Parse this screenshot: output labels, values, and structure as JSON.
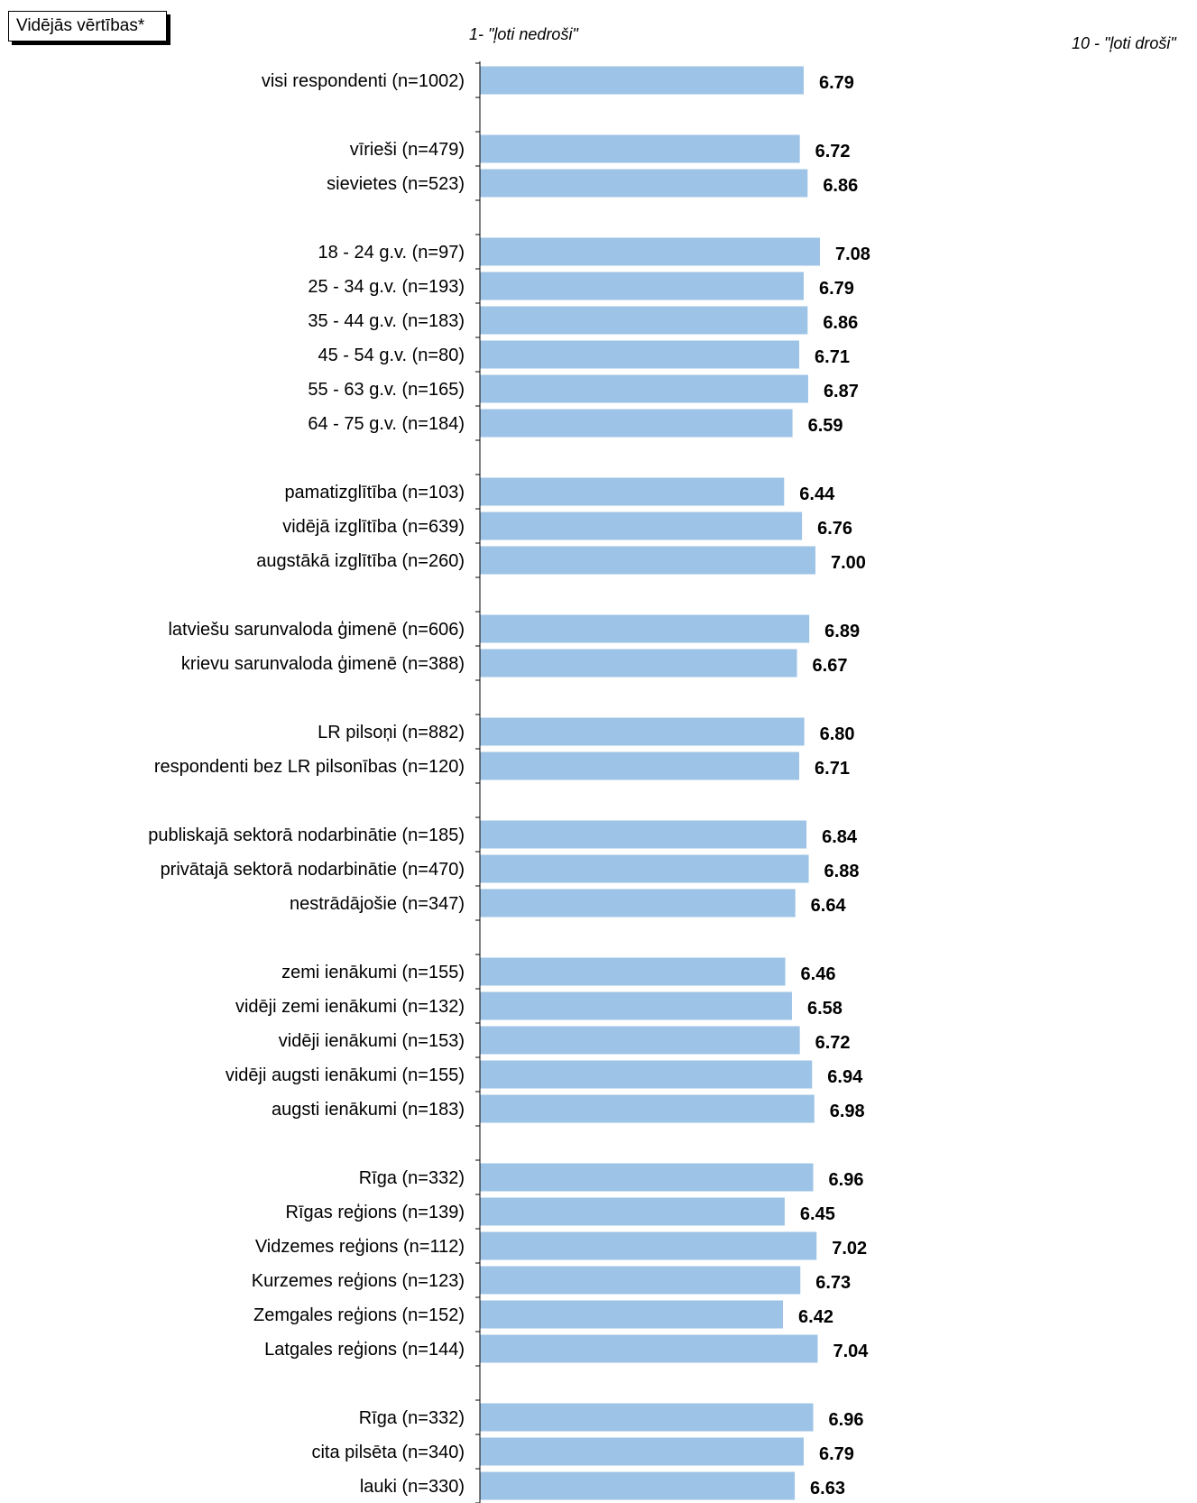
{
  "legend_box": {
    "text": "Vidējās vērtības*"
  },
  "scale_notes": {
    "low": "1- \"ļoti nedroši\"",
    "high": "10 - \"ļoti droši\""
  },
  "chart_data": {
    "type": "bar",
    "orientation": "horizontal",
    "bar_color": "#9dc3e6",
    "xlim": [
      1,
      10
    ],
    "groups": [
      {
        "items": [
          {
            "label": "visi respondenti (n=1002)",
            "value": 6.79,
            "value_label": "6.79"
          }
        ]
      },
      {
        "items": [
          {
            "label": "vīrieši (n=479)",
            "value": 6.72,
            "value_label": "6.72"
          },
          {
            "label": "sievietes (n=523)",
            "value": 6.86,
            "value_label": "6.86"
          }
        ]
      },
      {
        "items": [
          {
            "label": "18 - 24 g.v. (n=97)",
            "value": 7.08,
            "value_label": "7.08"
          },
          {
            "label": "25 - 34 g.v. (n=193)",
            "value": 6.79,
            "value_label": "6.79"
          },
          {
            "label": "35 - 44 g.v. (n=183)",
            "value": 6.86,
            "value_label": "6.86"
          },
          {
            "label": "45 - 54 g.v. (n=80)",
            "value": 6.71,
            "value_label": "6.71"
          },
          {
            "label": "55 - 63 g.v. (n=165)",
            "value": 6.87,
            "value_label": "6.87"
          },
          {
            "label": "64 - 75 g.v. (n=184)",
            "value": 6.59,
            "value_label": "6.59"
          }
        ]
      },
      {
        "items": [
          {
            "label": "pamatizglītība (n=103)",
            "value": 6.44,
            "value_label": "6.44"
          },
          {
            "label": "vidējā izglītība (n=639)",
            "value": 6.76,
            "value_label": "6.76"
          },
          {
            "label": "augstākā izglītība (n=260)",
            "value": 7.0,
            "value_label": "7.00"
          }
        ]
      },
      {
        "items": [
          {
            "label": "latviešu sarunvaloda ģimenē (n=606)",
            "value": 6.89,
            "value_label": "6.89"
          },
          {
            "label": "krievu sarunvaloda ģimenē (n=388)",
            "value": 6.67,
            "value_label": "6.67"
          }
        ]
      },
      {
        "items": [
          {
            "label": "LR pilsoņi (n=882)",
            "value": 6.8,
            "value_label": "6.80"
          },
          {
            "label": "respondenti bez LR pilsonības (n=120)",
            "value": 6.71,
            "value_label": "6.71"
          }
        ]
      },
      {
        "items": [
          {
            "label": "publiskajā sektorā nodarbinātie (n=185)",
            "value": 6.84,
            "value_label": "6.84"
          },
          {
            "label": "privātajā sektorā nodarbinātie (n=470)",
            "value": 6.88,
            "value_label": "6.88"
          },
          {
            "label": "nestrādājošie (n=347)",
            "value": 6.64,
            "value_label": "6.64"
          }
        ]
      },
      {
        "items": [
          {
            "label": "zemi ienākumi (n=155)",
            "value": 6.46,
            "value_label": "6.46"
          },
          {
            "label": "vidēji zemi ienākumi (n=132)",
            "value": 6.58,
            "value_label": "6.58"
          },
          {
            "label": "vidēji ienākumi (n=153)",
            "value": 6.72,
            "value_label": "6.72"
          },
          {
            "label": "vidēji augsti ienākumi (n=155)",
            "value": 6.94,
            "value_label": "6.94"
          },
          {
            "label": "augsti ienākumi (n=183)",
            "value": 6.98,
            "value_label": "6.98"
          }
        ]
      },
      {
        "items": [
          {
            "label": "Rīga (n=332)",
            "value": 6.96,
            "value_label": "6.96"
          },
          {
            "label": "Rīgas reģions (n=139)",
            "value": 6.45,
            "value_label": "6.45"
          },
          {
            "label": "Vidzemes reģions (n=112)",
            "value": 7.02,
            "value_label": "7.02"
          },
          {
            "label": "Kurzemes reģions (n=123)",
            "value": 6.73,
            "value_label": "6.73"
          },
          {
            "label": "Zemgales reģions (n=152)",
            "value": 6.42,
            "value_label": "6.42"
          },
          {
            "label": "Latgales reģions (n=144)",
            "value": 7.04,
            "value_label": "7.04"
          }
        ]
      },
      {
        "items": [
          {
            "label": "Rīga (n=332)",
            "value": 6.96,
            "value_label": "6.96"
          },
          {
            "label": "cita pilsēta (n=340)",
            "value": 6.79,
            "value_label": "6.79"
          },
          {
            "label": "lauki (n=330)",
            "value": 6.63,
            "value_label": "6.63"
          }
        ]
      }
    ]
  }
}
